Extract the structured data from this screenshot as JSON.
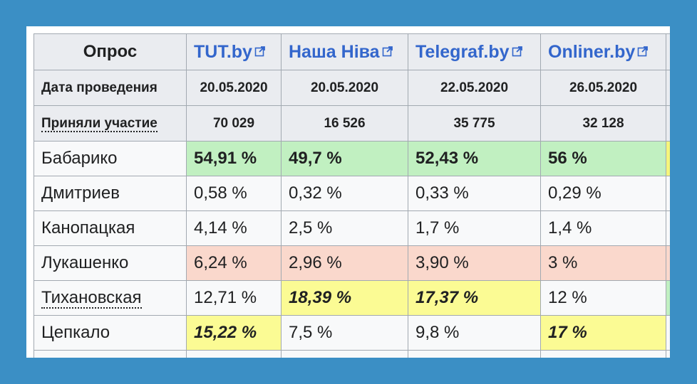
{
  "header": {
    "poll_label": "Опрос",
    "date_label": "Дата проведения",
    "participants_label": "Приняли участие"
  },
  "sources": [
    {
      "name": "TUT.by",
      "date": "20.05.2020",
      "participants": "70 029"
    },
    {
      "name": "Наша Ніва",
      "date": "20.05.2020",
      "participants": "16 526"
    },
    {
      "name": "Telegraf.by",
      "date": "22.05.2020",
      "participants": "35 775"
    },
    {
      "name": "Onliner.by",
      "date": "26.05.2020",
      "participants": "32 128"
    }
  ],
  "rows": [
    {
      "candidate": "Бабарико",
      "values": [
        "54,91 %",
        "49,7 %",
        "52,43 %",
        "56 %"
      ]
    },
    {
      "candidate": "Дмитриев",
      "values": [
        "0,58 %",
        "0,32 %",
        "0,33 %",
        "0,29 %"
      ]
    },
    {
      "candidate": "Канопацкая",
      "values": [
        "4,14 %",
        "2,5 %",
        "1,7 %",
        "1,4 %"
      ]
    },
    {
      "candidate": "Лукашенко",
      "values": [
        "6,24 %",
        "2,96 %",
        "3,90 %",
        "3 %"
      ]
    },
    {
      "candidate": "Тихановская",
      "values": [
        "12,71 %",
        "18,39 %",
        "17,37 %",
        "12 %"
      ]
    },
    {
      "candidate": "Цепкало",
      "values": [
        "15,22 %",
        "7,5 %",
        "9,8 %",
        "17 %"
      ]
    }
  ],
  "colors": {
    "background": "#3b8fc5",
    "leader_green": "#c1f0c1",
    "incumbent_red": "#fad8cc",
    "highlight_yellow": "#fbfb94",
    "link_blue": "#3366cc"
  },
  "icons": {
    "external_link": "external-link-icon"
  }
}
